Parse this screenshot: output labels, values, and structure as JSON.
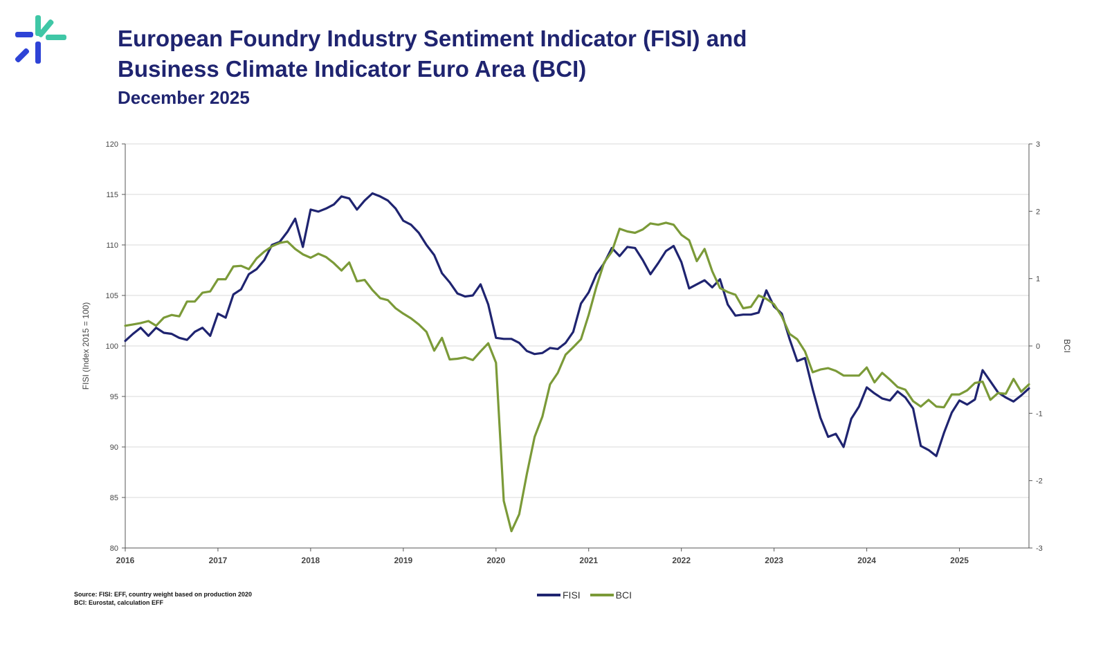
{
  "header": {
    "title_line1": "European Foundry Industry Sentiment Indicator (FISI) and",
    "title_line2": "Business Climate Indicator Euro Area (BCI)",
    "subtitle": "December 2025"
  },
  "logo": {
    "icon": "cfs-burst-logo",
    "colors": [
      "#2e43d6",
      "#3fc7a6"
    ]
  },
  "source": {
    "line1": "Source: FISI: EFF, country weight based on production 2020",
    "line2": "BCI: Eurostat, calculation EFF"
  },
  "colors": {
    "fisi": "#1f2470",
    "bci": "#7b9a38",
    "grid": "#d9d9d9",
    "axis": "#555555"
  },
  "chart_data": {
    "type": "line",
    "title": "European Foundry Industry Sentiment Indicator (FISI) and Business Climate Indicator Euro Area (BCI)",
    "subtitle": "December 2025",
    "x_start": 2016.0,
    "x_step": 0.0833333,
    "xlim": [
      2016,
      2025.75
    ],
    "x_ticks": [
      "2016",
      "2017",
      "2018",
      "2019",
      "2020",
      "2021",
      "2022",
      "2023",
      "2024",
      "2025"
    ],
    "ylabel": "FISI (Index 2015 = 100)",
    "ylim": [
      80,
      120
    ],
    "y_ticks": [
      "80",
      "85",
      "90",
      "95",
      "100",
      "105",
      "110",
      "115",
      "120"
    ],
    "y2label": "BCI",
    "y2lim": [
      -3,
      3
    ],
    "y2_ticks": [
      "-3",
      "-2",
      "-1",
      "0",
      "1",
      "2",
      "3"
    ],
    "grid": true,
    "legend_position": "bottom",
    "series": [
      {
        "name": "FISI",
        "axis": "left",
        "values": [
          100.5,
          101.2,
          101.8,
          101.0,
          101.8,
          101.3,
          101.2,
          100.8,
          100.6,
          101.4,
          101.8,
          101.0,
          103.2,
          102.8,
          105.1,
          105.6,
          107.1,
          107.6,
          108.5,
          110.0,
          110.3,
          111.3,
          112.6,
          109.8,
          113.5,
          113.3,
          113.6,
          114.0,
          114.8,
          114.6,
          113.5,
          114.4,
          115.1,
          114.8,
          114.4,
          113.6,
          112.4,
          112.0,
          111.2,
          110.0,
          109.0,
          107.2,
          106.3,
          105.2,
          104.9,
          105.0,
          106.1,
          104.1,
          100.8,
          100.7,
          100.7,
          100.3,
          99.5,
          99.2,
          99.3,
          99.8,
          99.7,
          100.3,
          101.4,
          104.2,
          105.3,
          107.1,
          108.2,
          109.7,
          108.9,
          109.8,
          109.7,
          108.5,
          107.1,
          108.2,
          109.4,
          109.9,
          108.3,
          105.7,
          106.1,
          106.5,
          105.8,
          106.6,
          104.1,
          103.0,
          103.1,
          103.1,
          103.3,
          105.5,
          103.9,
          103.2,
          100.7,
          98.5,
          98.8,
          95.7,
          92.9,
          91.0,
          91.3,
          90.0,
          92.8,
          94.0,
          95.9,
          95.3,
          94.8,
          94.6,
          95.5,
          94.9,
          93.8,
          90.1,
          89.7,
          89.1,
          91.4,
          93.4,
          94.6,
          94.2,
          94.7,
          97.6,
          96.5,
          95.4,
          94.9,
          94.5,
          95.1,
          95.8
        ]
      },
      {
        "name": "BCI",
        "axis": "right",
        "values": [
          0.3,
          0.32,
          0.34,
          0.37,
          0.3,
          0.42,
          0.46,
          0.44,
          0.66,
          0.66,
          0.79,
          0.81,
          0.99,
          0.99,
          1.18,
          1.19,
          1.14,
          1.3,
          1.4,
          1.48,
          1.53,
          1.55,
          1.44,
          1.36,
          1.31,
          1.37,
          1.32,
          1.23,
          1.12,
          1.24,
          0.96,
          0.98,
          0.83,
          0.71,
          0.68,
          0.56,
          0.48,
          0.41,
          0.32,
          0.21,
          -0.07,
          0.12,
          -0.2,
          -0.19,
          -0.17,
          -0.21,
          -0.08,
          0.04,
          -0.25,
          -2.3,
          -2.75,
          -2.5,
          -1.9,
          -1.35,
          -1.05,
          -0.57,
          -0.4,
          -0.13,
          -0.02,
          0.1,
          0.46,
          0.88,
          1.24,
          1.4,
          1.74,
          1.7,
          1.68,
          1.73,
          1.82,
          1.8,
          1.83,
          1.8,
          1.65,
          1.57,
          1.26,
          1.44,
          1.11,
          0.86,
          0.8,
          0.76,
          0.56,
          0.58,
          0.75,
          0.7,
          0.62,
          0.44,
          0.18,
          0.1,
          -0.08,
          -0.39,
          -0.35,
          -0.33,
          -0.37,
          -0.44,
          -0.44,
          -0.44,
          -0.32,
          -0.54,
          -0.4,
          -0.5,
          -0.61,
          -0.65,
          -0.82,
          -0.9,
          -0.8,
          -0.9,
          -0.91,
          -0.72,
          -0.72,
          -0.66,
          -0.55,
          -0.53,
          -0.8,
          -0.7,
          -0.71,
          -0.49,
          -0.68,
          -0.57
        ]
      }
    ]
  }
}
